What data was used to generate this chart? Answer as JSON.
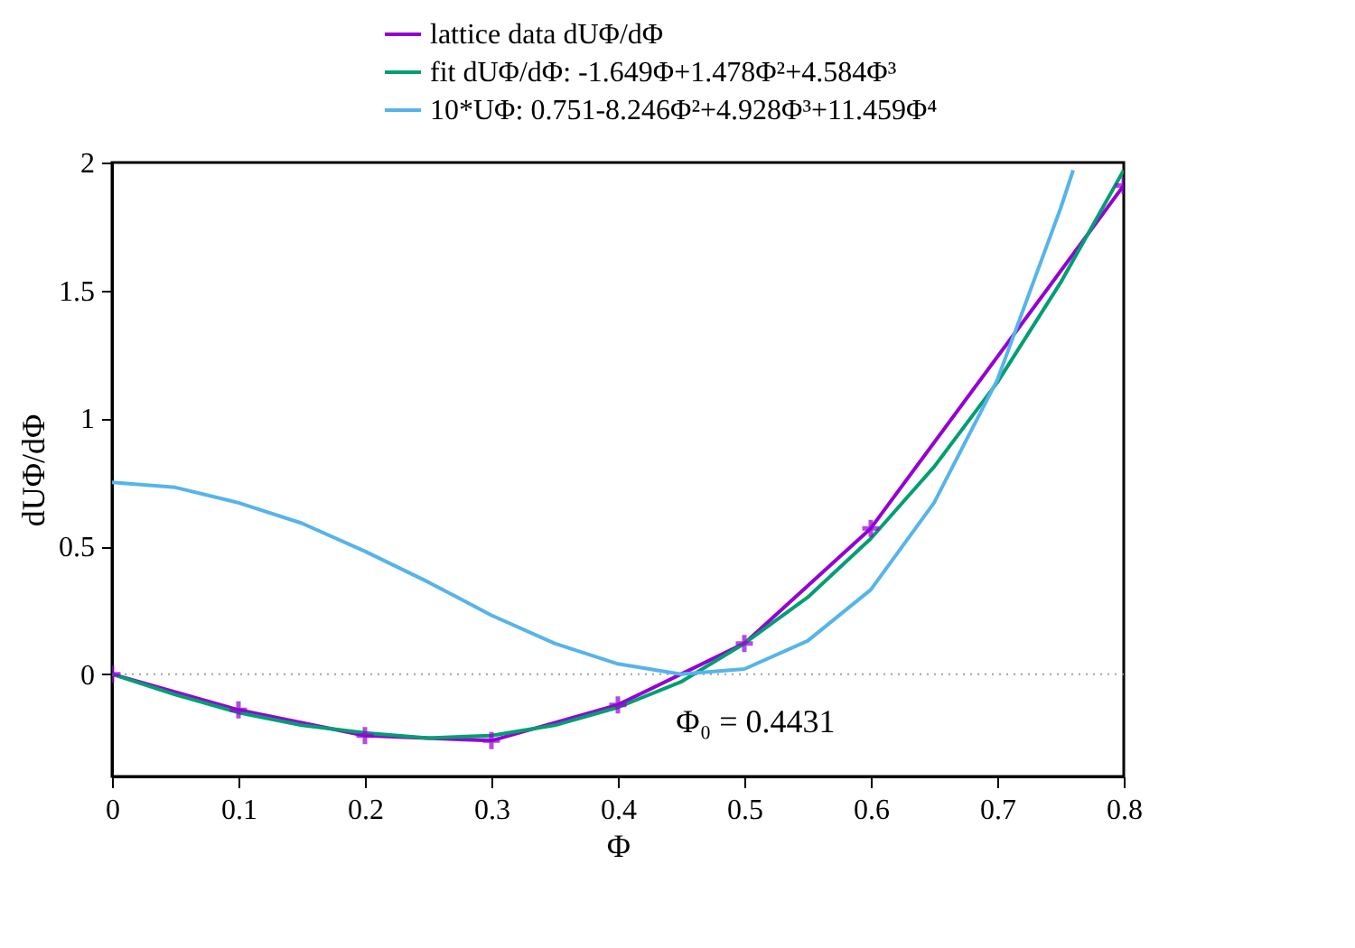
{
  "chart_data": {
    "type": "line",
    "xlabel": "Φ",
    "ylabel": "dUΦ/dΦ",
    "xlim": [
      0,
      0.8
    ],
    "xticks": [
      0,
      0.1,
      0.2,
      0.3,
      0.4,
      0.5,
      0.6,
      0.7,
      0.8
    ],
    "ylim": [
      -0.4,
      2
    ],
    "yticks": [
      0,
      0.5,
      1,
      1.5,
      2
    ],
    "grid": false,
    "legend": "top right",
    "line_style": "solid",
    "ref_lines": [
      {
        "axis": "y",
        "value": 0,
        "color": "#a0a0a0",
        "line_style": "dotted"
      }
    ],
    "annotations": [
      {
        "text": "Φ₀ = 0.4431",
        "x": 0.4431,
        "y": 0
      }
    ],
    "series": [
      {
        "name": "lattice data dUΦ/dΦ",
        "marker": "cross",
        "color": "#9400d3",
        "x": [
          0,
          0.1,
          0.2,
          0.3,
          0.4,
          0.5,
          0.6,
          0.8
        ],
        "values": [
          0,
          -0.14,
          -0.24,
          -0.26,
          -0.12,
          0.12,
          0.57,
          1.91
        ]
      },
      {
        "name": "fit dUΦ/dΦ: -1.649Φ+1.478Φ²+4.584Φ³",
        "color": "#009e73",
        "x": [
          0,
          0.05,
          0.1,
          0.15,
          0.2,
          0.25,
          0.3,
          0.35,
          0.4,
          0.45,
          0.5,
          0.55,
          0.6,
          0.65,
          0.7,
          0.75,
          0.8
        ],
        "values": [
          0,
          -0.08,
          -0.15,
          -0.2,
          -0.23,
          -0.25,
          -0.24,
          -0.2,
          -0.13,
          -0.03,
          0.12,
          0.3,
          0.53,
          0.81,
          1.14,
          1.53,
          1.97
        ]
      },
      {
        "name": "10*UΦ: 0.751-8.246Φ²+4.928Φ³+11.459Φ⁴",
        "color": "#56b4e9",
        "x": [
          0,
          0.05,
          0.1,
          0.15,
          0.2,
          0.25,
          0.3,
          0.35,
          0.4,
          0.45,
          0.5,
          0.55,
          0.6,
          0.65,
          0.7,
          0.75,
          0.76
        ],
        "values": [
          0.75,
          0.73,
          0.67,
          0.59,
          0.48,
          0.36,
          0.23,
          0.12,
          0.04,
          0.0,
          0.02,
          0.13,
          0.33,
          0.67,
          1.15,
          1.82,
          1.97
        ]
      }
    ]
  }
}
